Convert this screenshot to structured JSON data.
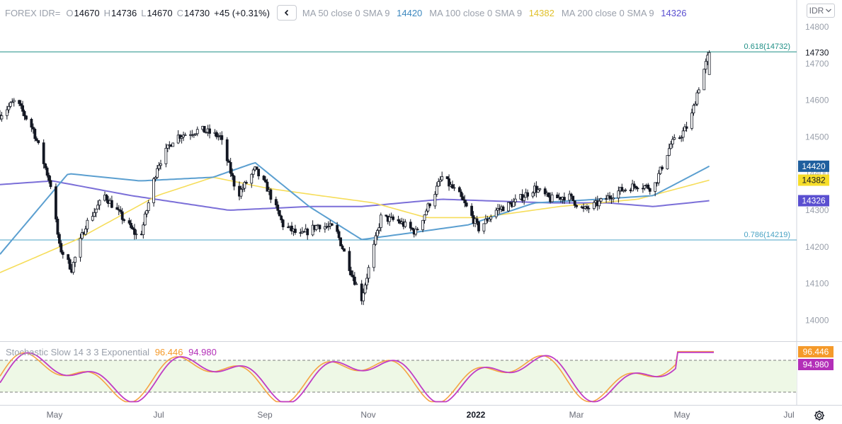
{
  "header": {
    "symbol": "FOREX IDR=",
    "open_label": "O",
    "open": "14670",
    "high_label": "H",
    "high": "14736",
    "low_label": "L",
    "low": "14670",
    "close_label": "C",
    "close": "14730",
    "change": "+45 (+0.31%)",
    "currency": "IDR",
    "currency_icon": "chevron-down-icon"
  },
  "indicators": {
    "ma50": {
      "label": "MA 50 close 0 SMA 9",
      "value": "14420",
      "color": "#5b9fd0"
    },
    "ma100": {
      "label": "MA 100 close 0 SMA 9",
      "value": "14382",
      "color": "#f6dd5a"
    },
    "ma200": {
      "label": "MA 200 close 0 SMA 9",
      "value": "14326",
      "color": "#7b6fd8"
    },
    "stochastic": {
      "label": "Stochastic Slow 14 3 3 Exponential",
      "k": "96.446",
      "d": "94.980",
      "k_color": "#f5a443",
      "d_color": "#c03cc4"
    }
  },
  "fib_levels": [
    {
      "label": "0.618(14732)",
      "value": 14732,
      "color": "#1f8f86"
    },
    {
      "label": "0.786(14219)",
      "value": 14219,
      "color": "#4aa3c4"
    }
  ],
  "price_axis": {
    "ticks": [
      "14800",
      "14700",
      "14600",
      "14500",
      "14400",
      "14300",
      "14200",
      "14100",
      "14000"
    ],
    "tick_values": [
      14800,
      14700,
      14600,
      14500,
      14400,
      14300,
      14200,
      14100,
      14000
    ],
    "last_price": "14730"
  },
  "time_axis": {
    "labels": [
      "May",
      "Jul",
      "Sep",
      "Nov",
      "2022",
      "Mar",
      "May",
      "Jul"
    ]
  },
  "chart_data": {
    "type": "candlestick",
    "title": "FOREX IDR=",
    "x_range": [
      "2021-04-01",
      "2022-07-01"
    ],
    "ylim": [
      13940,
      14830
    ],
    "grid": false,
    "ohlc_keypoints": [
      [
        "2021-04-01",
        14560
      ],
      [
        "2021-04-10",
        14600
      ],
      [
        "2021-04-20",
        14520
      ],
      [
        "2021-04-30",
        14370
      ],
      [
        "2021-05-05",
        14200
      ],
      [
        "2021-05-12",
        14140
      ],
      [
        "2021-05-20",
        14260
      ],
      [
        "2021-05-31",
        14340
      ],
      [
        "2021-06-10",
        14280
      ],
      [
        "2021-06-20",
        14220
      ],
      [
        "2021-06-30",
        14420
      ],
      [
        "2021-07-10",
        14500
      ],
      [
        "2021-07-25",
        14520
      ],
      [
        "2021-08-05",
        14500
      ],
      [
        "2021-08-15",
        14340
      ],
      [
        "2021-08-25",
        14410
      ],
      [
        "2021-09-01",
        14360
      ],
      [
        "2021-09-10",
        14260
      ],
      [
        "2021-09-20",
        14230
      ],
      [
        "2021-09-30",
        14260
      ],
      [
        "2021-10-10",
        14250
      ],
      [
        "2021-10-20",
        14120
      ],
      [
        "2021-10-25",
        14060
      ],
      [
        "2021-11-05",
        14280
      ],
      [
        "2021-11-15",
        14270
      ],
      [
        "2021-11-25",
        14240
      ],
      [
        "2021-12-05",
        14340
      ],
      [
        "2021-12-10",
        14390
      ],
      [
        "2021-12-20",
        14340
      ],
      [
        "2021-12-31",
        14250
      ],
      [
        "2022-01-10",
        14300
      ],
      [
        "2022-01-20",
        14320
      ],
      [
        "2022-02-01",
        14360
      ],
      [
        "2022-02-10",
        14330
      ],
      [
        "2022-02-20",
        14340
      ],
      [
        "2022-03-01",
        14300
      ],
      [
        "2022-03-10",
        14320
      ],
      [
        "2022-03-20",
        14350
      ],
      [
        "2022-04-01",
        14370
      ],
      [
        "2022-04-10",
        14360
      ],
      [
        "2022-04-15",
        14420
      ],
      [
        "2022-04-20",
        14480
      ],
      [
        "2022-04-25",
        14500
      ],
      [
        "2022-05-01",
        14540
      ],
      [
        "2022-05-05",
        14620
      ],
      [
        "2022-05-10",
        14700
      ],
      [
        "2022-05-12",
        14730
      ]
    ],
    "candle_interval": "daily",
    "ma50": [
      [
        "2021-04-01",
        14180
      ],
      [
        "2021-05-10",
        14400
      ],
      [
        "2021-06-20",
        14380
      ],
      [
        "2021-08-01",
        14390
      ],
      [
        "2021-08-25",
        14430
      ],
      [
        "2021-09-25",
        14310
      ],
      [
        "2021-10-25",
        14220
      ],
      [
        "2021-11-25",
        14240
      ],
      [
        "2021-12-25",
        14260
      ],
      [
        "2022-02-01",
        14320
      ],
      [
        "2022-03-10",
        14330
      ],
      [
        "2022-04-10",
        14340
      ],
      [
        "2022-05-12",
        14420
      ]
    ],
    "ma100": [
      [
        "2021-04-01",
        14130
      ],
      [
        "2021-05-15",
        14220
      ],
      [
        "2021-06-30",
        14340
      ],
      [
        "2021-08-01",
        14390
      ],
      [
        "2021-09-01",
        14360
      ],
      [
        "2021-10-01",
        14340
      ],
      [
        "2021-11-01",
        14320
      ],
      [
        "2021-12-01",
        14280
      ],
      [
        "2022-01-01",
        14280
      ],
      [
        "2022-02-15",
        14310
      ],
      [
        "2022-04-01",
        14330
      ],
      [
        "2022-05-12",
        14382
      ]
    ],
    "ma200": [
      [
        "2021-04-01",
        14370
      ],
      [
        "2021-05-01",
        14380
      ],
      [
        "2021-06-15",
        14340
      ],
      [
        "2021-08-10",
        14300
      ],
      [
        "2021-09-25",
        14310
      ],
      [
        "2021-10-25",
        14310
      ],
      [
        "2021-12-10",
        14330
      ],
      [
        "2022-02-10",
        14320
      ],
      [
        "2022-03-15",
        14320
      ],
      [
        "2022-04-10",
        14310
      ],
      [
        "2022-05-12",
        14326
      ]
    ],
    "stoch_k_last": 96.446,
    "stoch_d_last": 94.98,
    "stoch_bands": [
      80,
      20
    ],
    "stoch_ylim": [
      -5,
      105
    ]
  }
}
